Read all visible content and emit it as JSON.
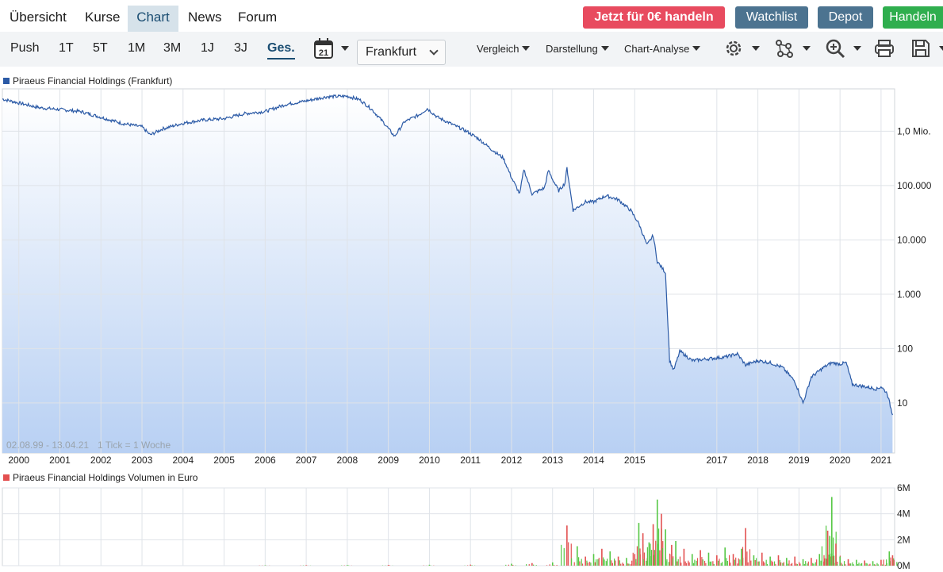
{
  "nav": {
    "tabs": [
      "Übersicht",
      "Kurse",
      "Chart",
      "News",
      "Forum"
    ],
    "active": "Chart"
  },
  "actions": {
    "trade_free": "Jetzt für 0€ handeln",
    "watchlist": "Watchlist",
    "depot": "Depot",
    "trade": "Handeln"
  },
  "toolbar": {
    "ranges": [
      "Push",
      "1T",
      "5T",
      "1M",
      "3M",
      "1J",
      "3J",
      "Ges."
    ],
    "active_range": "Ges.",
    "calendar_day": "21",
    "exchange": "Frankfurt",
    "menus": [
      "Vergleich",
      "Darstellung",
      "Chart-Analyse"
    ],
    "icons": [
      "gear-icon",
      "network-icon",
      "zoom-icon",
      "print-icon",
      "save-icon"
    ]
  },
  "colors": {
    "line": "#2b5aa6",
    "area_top": "#ffffff",
    "area_bottom": "#b8d0f3",
    "grid": "#dfe3e8",
    "vol_up": "#56c845",
    "vol_down": "#e35050",
    "legend_price": "#2b5aa6",
    "legend_vol": "#e35050",
    "range_active": "#1a4d72",
    "btn_red": "#e84b5f",
    "btn_steel": "#4c7390",
    "btn_green": "#2fae4e"
  },
  "chart_data": [
    {
      "type": "area",
      "title": "Piraeus Financial Holdings (Frankfurt)",
      "series_name": "Piraeus Financial Holdings (Frankfurt)",
      "yscale": "log",
      "ylim": [
        1.2,
        6000000
      ],
      "xlim": [
        1999.6,
        2021.33
      ],
      "date_range_note": "02.08.99 - 13.04.21",
      "tick_note": "1 Tick = 1 Woche",
      "x_ticks": [
        "2000",
        "2001",
        "2002",
        "2003",
        "2004",
        "2005",
        "2006",
        "2007",
        "2008",
        "2009",
        "2010",
        "2011",
        "2012",
        "2013",
        "2014",
        "2015",
        "2017",
        "2018",
        "2019",
        "2020",
        "2021"
      ],
      "y_ticks": [
        {
          "value": 10,
          "label": "10"
        },
        {
          "value": 100,
          "label": "100"
        },
        {
          "value": 1000,
          "label": "1.000"
        },
        {
          "value": 10000,
          "label": "10.000"
        },
        {
          "value": 100000,
          "label": "100.000"
        },
        {
          "value": 1000000,
          "label": "1,0 Mio."
        }
      ],
      "points": [
        [
          1999.6,
          3900000
        ],
        [
          2000.0,
          3300000
        ],
        [
          2000.5,
          2700000
        ],
        [
          2001.0,
          2500000
        ],
        [
          2001.5,
          2300000
        ],
        [
          2002.0,
          1800000
        ],
        [
          2002.5,
          1400000
        ],
        [
          2003.0,
          1200000
        ],
        [
          2003.2,
          850000
        ],
        [
          2003.5,
          1100000
        ],
        [
          2004.0,
          1400000
        ],
        [
          2004.5,
          1600000
        ],
        [
          2005.0,
          1700000
        ],
        [
          2005.5,
          2100000
        ],
        [
          2006.0,
          2300000
        ],
        [
          2006.5,
          3100000
        ],
        [
          2007.0,
          3600000
        ],
        [
          2007.5,
          4300000
        ],
        [
          2008.0,
          4400000
        ],
        [
          2008.3,
          3800000
        ],
        [
          2008.6,
          2500000
        ],
        [
          2008.9,
          1400000
        ],
        [
          2009.15,
          800000
        ],
        [
          2009.4,
          1500000
        ],
        [
          2009.75,
          2000000
        ],
        [
          2009.95,
          2600000
        ],
        [
          2010.2,
          1800000
        ],
        [
          2010.5,
          1400000
        ],
        [
          2010.9,
          1000000
        ],
        [
          2011.2,
          720000
        ],
        [
          2011.5,
          470000
        ],
        [
          2011.8,
          320000
        ],
        [
          2012.0,
          140000
        ],
        [
          2012.2,
          70000
        ],
        [
          2012.3,
          200000
        ],
        [
          2012.5,
          70000
        ],
        [
          2012.8,
          90000
        ],
        [
          2012.9,
          190000
        ],
        [
          2013.0,
          130000
        ],
        [
          2013.15,
          80000
        ],
        [
          2013.3,
          110000
        ],
        [
          2013.35,
          210000
        ],
        [
          2013.5,
          35000
        ],
        [
          2013.8,
          50000
        ],
        [
          2014.0,
          50000
        ],
        [
          2014.3,
          65000
        ],
        [
          2014.6,
          55000
        ],
        [
          2014.9,
          35000
        ],
        [
          2015.1,
          20000
        ],
        [
          2015.3,
          8000
        ],
        [
          2015.45,
          12000
        ],
        [
          2015.55,
          4000
        ],
        [
          2015.75,
          2500
        ],
        [
          2015.85,
          60
        ],
        [
          2015.95,
          40
        ],
        [
          2016.1,
          90
        ],
        [
          2016.4,
          60
        ],
        [
          2016.8,
          65
        ],
        [
          2017.2,
          70
        ],
        [
          2017.5,
          80
        ],
        [
          2017.7,
          50
        ],
        [
          2018.0,
          60
        ],
        [
          2018.3,
          55
        ],
        [
          2018.6,
          45
        ],
        [
          2018.9,
          25
        ],
        [
          2019.1,
          10
        ],
        [
          2019.3,
          30
        ],
        [
          2019.6,
          45
        ],
        [
          2019.8,
          55
        ],
        [
          2020.0,
          52
        ],
        [
          2020.15,
          55
        ],
        [
          2020.3,
          22
        ],
        [
          2020.6,
          20
        ],
        [
          2020.9,
          18
        ],
        [
          2021.0,
          20
        ],
        [
          2021.15,
          15
        ],
        [
          2021.28,
          6
        ]
      ]
    },
    {
      "type": "bar",
      "title": "Piraeus Financial Holdings Volumen in Euro",
      "series_name": "Piraeus Financial Holdings Volumen in Euro",
      "ylim": [
        0,
        6000000
      ],
      "y_ticks": [
        {
          "value": 0,
          "label": "0M"
        },
        {
          "value": 2000000,
          "label": "2M"
        },
        {
          "value": 4000000,
          "label": "4M"
        },
        {
          "value": 6000000,
          "label": "6M"
        }
      ],
      "bars": [
        [
          2006.0,
          30000,
          "up"
        ],
        [
          2007.0,
          40000,
          "down"
        ],
        [
          2008.0,
          50000,
          "up"
        ],
        [
          2009.0,
          60000,
          "down"
        ],
        [
          2010.0,
          70000,
          "up"
        ],
        [
          2011.0,
          80000,
          "down"
        ],
        [
          2012.0,
          150000,
          "up"
        ],
        [
          2012.5,
          200000,
          "down"
        ],
        [
          2013.0,
          250000,
          "up"
        ],
        [
          2013.35,
          3100000,
          "down"
        ],
        [
          2013.6,
          1500000,
          "up"
        ],
        [
          2013.8,
          700000,
          "down"
        ],
        [
          2014.0,
          900000,
          "up"
        ],
        [
          2014.2,
          1300000,
          "down"
        ],
        [
          2014.4,
          1100000,
          "up"
        ],
        [
          2014.6,
          700000,
          "down"
        ],
        [
          2014.8,
          600000,
          "up"
        ],
        [
          2015.0,
          900000,
          "down"
        ],
        [
          2015.1,
          3300000,
          "up"
        ],
        [
          2015.2,
          2500000,
          "down"
        ],
        [
          2015.35,
          1800000,
          "up"
        ],
        [
          2015.45,
          3200000,
          "down"
        ],
        [
          2015.55,
          5100000,
          "up"
        ],
        [
          2015.65,
          4000000,
          "down"
        ],
        [
          2015.75,
          2800000,
          "up"
        ],
        [
          2015.9,
          1600000,
          "down"
        ],
        [
          2016.0,
          1900000,
          "up"
        ],
        [
          2016.2,
          1300000,
          "down"
        ],
        [
          2016.4,
          900000,
          "up"
        ],
        [
          2016.6,
          1200000,
          "down"
        ],
        [
          2016.8,
          1000000,
          "up"
        ],
        [
          2017.0,
          800000,
          "down"
        ],
        [
          2017.2,
          1400000,
          "up"
        ],
        [
          2017.4,
          900000,
          "down"
        ],
        [
          2017.6,
          1300000,
          "up"
        ],
        [
          2017.7,
          2900000,
          "down"
        ],
        [
          2017.9,
          800000,
          "up"
        ],
        [
          2018.1,
          1000000,
          "down"
        ],
        [
          2018.3,
          700000,
          "up"
        ],
        [
          2018.5,
          800000,
          "down"
        ],
        [
          2018.7,
          600000,
          "up"
        ],
        [
          2018.9,
          700000,
          "down"
        ],
        [
          2019.1,
          500000,
          "up"
        ],
        [
          2019.3,
          600000,
          "down"
        ],
        [
          2019.5,
          900000,
          "up"
        ],
        [
          2019.7,
          2700000,
          "down"
        ],
        [
          2019.75,
          2300000,
          "up"
        ],
        [
          2019.8,
          5300000,
          "up"
        ],
        [
          2019.9,
          1700000,
          "down"
        ],
        [
          2020.0,
          700000,
          "up"
        ],
        [
          2020.2,
          500000,
          "down"
        ],
        [
          2020.4,
          450000,
          "up"
        ],
        [
          2020.6,
          400000,
          "down"
        ],
        [
          2020.8,
          350000,
          "up"
        ],
        [
          2021.0,
          450000,
          "down"
        ],
        [
          2021.2,
          1100000,
          "up"
        ],
        [
          2021.28,
          800000,
          "down"
        ]
      ]
    }
  ]
}
